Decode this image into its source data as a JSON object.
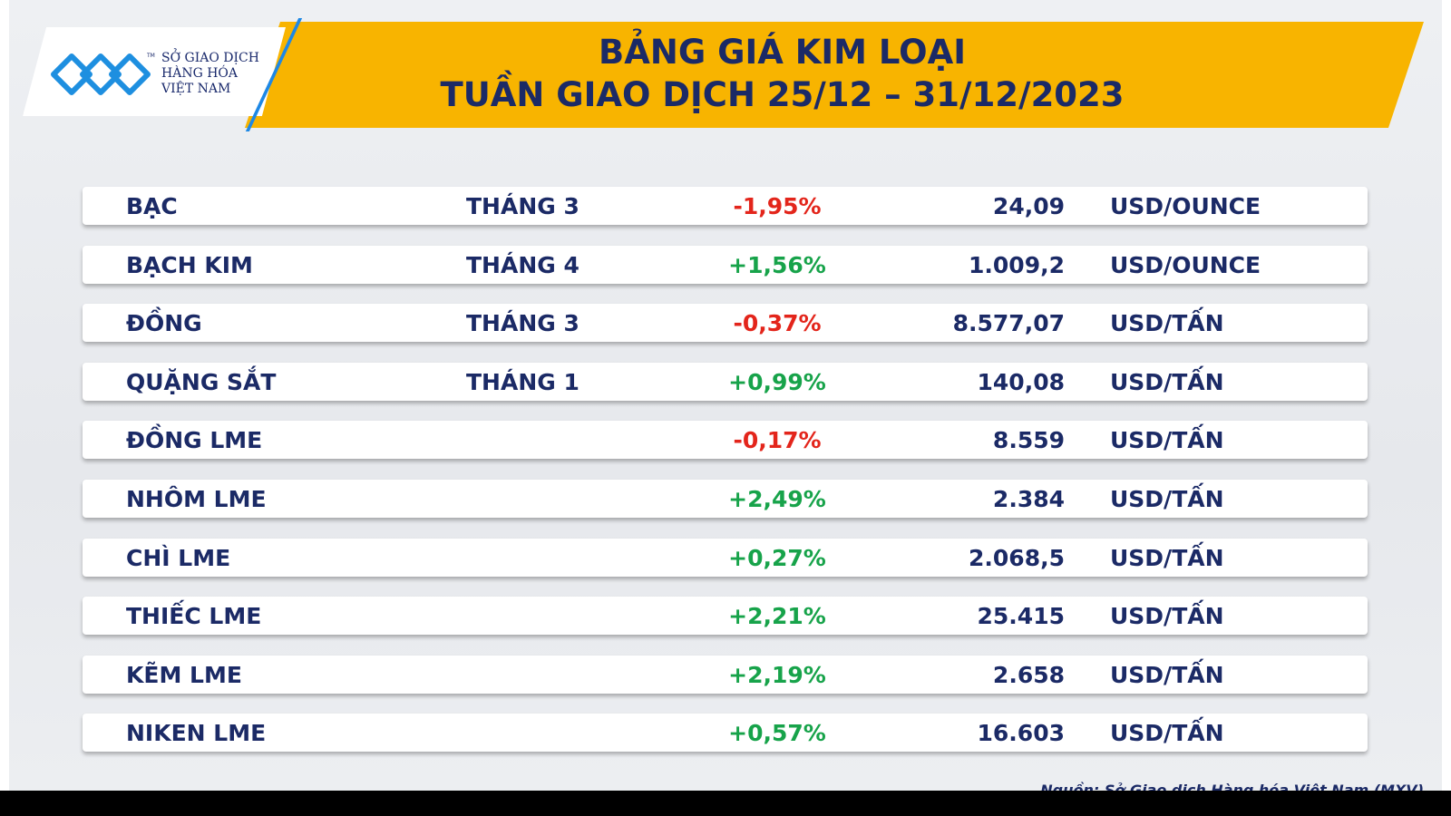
{
  "header": {
    "logo": [
      "SỞ GIAO DỊCH",
      "HÀNG HÓA",
      "VIỆT NAM"
    ],
    "logo_mark": "TM",
    "title": [
      "BẢNG GIÁ KIM LOẠI",
      "TUẦN GIAO DỊCH 25/12 – 31/12/2023"
    ]
  },
  "table": {
    "rows": [
      {
        "name": "BẠC",
        "contract": "THÁNG 3",
        "change": "-1,95%",
        "change_color": "#e3251b",
        "price": "24,09",
        "unit": "USD/OUNCE"
      },
      {
        "name": "BẠCH KIM",
        "contract": "THÁNG 4",
        "change": "+1,56%",
        "change_color": "#17a34a",
        "price": "1.009,2",
        "unit": "USD/OUNCE"
      },
      {
        "name": "ĐỒNG",
        "contract": "THÁNG 3",
        "change": "-0,37%",
        "change_color": "#e3251b",
        "price": "8.577,07",
        "unit": "USD/TẤN"
      },
      {
        "name": "QUẶNG SẮT",
        "contract": "THÁNG 1",
        "change": "+0,99%",
        "change_color": "#17a34a",
        "price": "140,08",
        "unit": "USD/TẤN"
      },
      {
        "name": "ĐỒNG LME",
        "change": "-0,17%",
        "change_color": "#e3251b",
        "price": "8.559",
        "unit": "USD/TẤN"
      },
      {
        "name": "NHÔM LME",
        "change": "+2,49%",
        "change_color": "#17a34a",
        "price": "2.384",
        "unit": "USD/TẤN"
      },
      {
        "name": "CHÌ LME",
        "change": "+0,27%",
        "change_color": "#17a34a",
        "price": "2.068,5",
        "unit": "USD/TẤN"
      },
      {
        "name": "THIẾC LME",
        "change": "+2,21%",
        "change_color": "#17a34a",
        "price": "25.415",
        "unit": "USD/TẤN"
      },
      {
        "name": "KẼM LME",
        "change": "+2,19%",
        "change_color": "#17a34a",
        "price": "2.658",
        "unit": "USD/TẤN"
      },
      {
        "name": "NIKEN LME",
        "change": "+0,57%",
        "change_color": "#17a34a",
        "price": "16.603",
        "unit": "USD/TẤN"
      }
    ]
  },
  "source": "Nguồn: Sở Giao dịch Hàng hóa Việt Nam (MXV)"
}
